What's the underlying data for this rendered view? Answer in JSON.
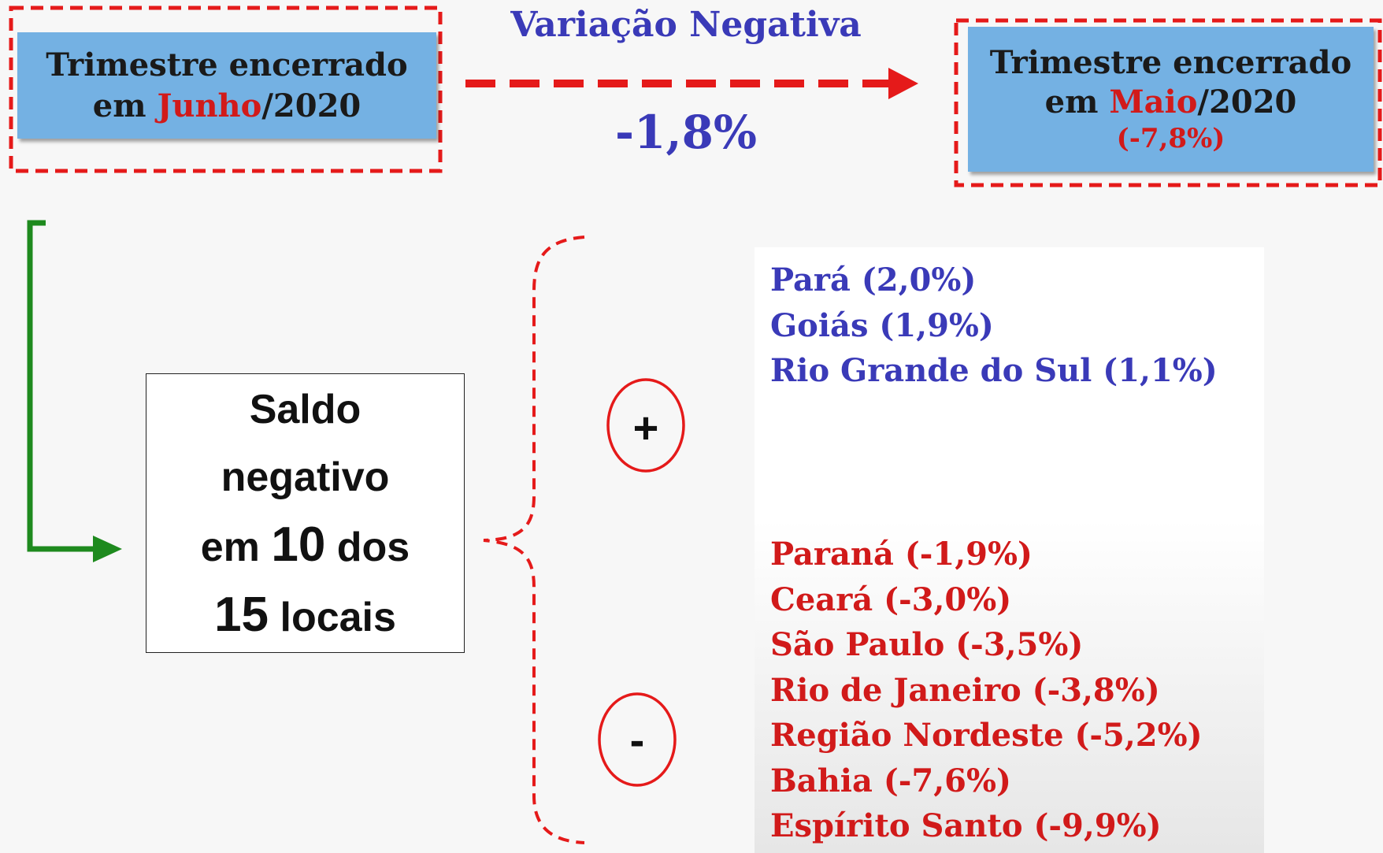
{
  "header": {
    "left_box": {
      "line1": "Trimestre encerrado",
      "prefix": "em ",
      "month": "Junho",
      "suffix": "/2020"
    },
    "arrow": {
      "title": "Variação Negativa",
      "value": "-1,8%"
    },
    "right_box": {
      "line1": "Trimestre encerrado",
      "prefix": "em ",
      "month": "Maio",
      "suffix": "/2020",
      "change": "(-7,8%)"
    }
  },
  "summary": {
    "line1": "Saldo",
    "line2": "negativo",
    "line3a": "em ",
    "line3b": "10",
    "line3c": " dos",
    "line4a": "15",
    "line4b": " locais"
  },
  "positive": {
    "symbol": "+",
    "items": [
      "Pará (2,0%)",
      "Goiás (1,9%)",
      "Rio Grande do Sul (1,1%)"
    ]
  },
  "negative": {
    "symbol": "-",
    "items": [
      "Paraná (-1,9%)",
      "Ceará (-3,0%)",
      "São Paulo (-3,5%)",
      "Rio de Janeiro (-3,8%)",
      "Região Nordeste (-5,2%)",
      "Bahia (-7,6%)",
      "Espírito Santo (-9,9%)"
    ]
  }
}
